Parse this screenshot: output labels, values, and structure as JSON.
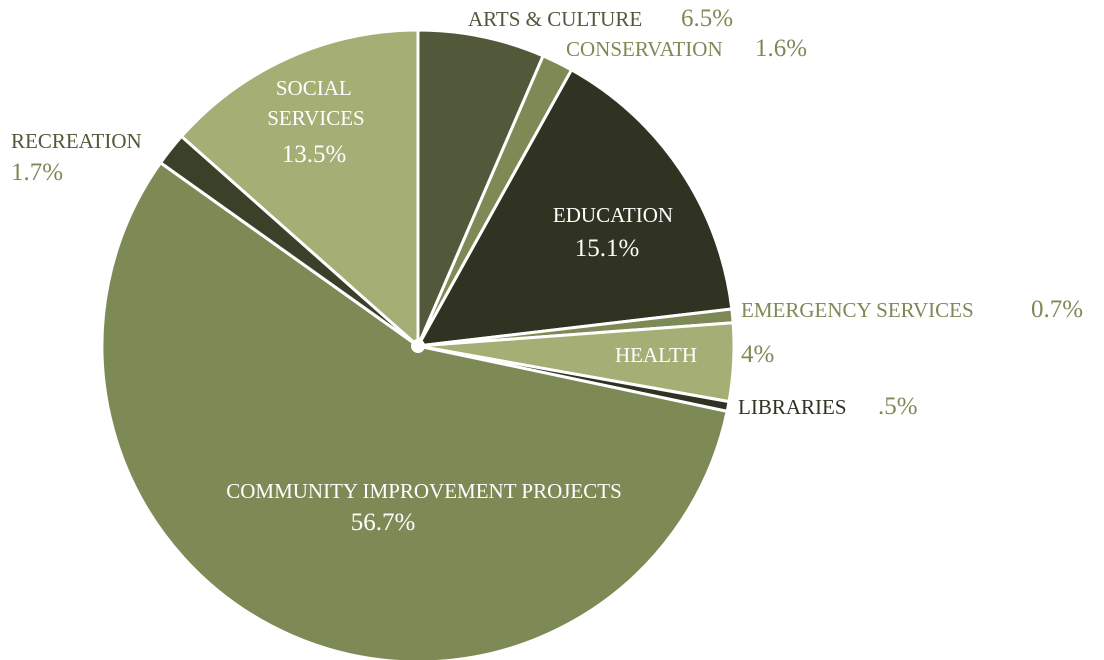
{
  "chart_data": {
    "type": "pie",
    "title": "",
    "slices": [
      {
        "name": "ARTS & CULTURE",
        "value": 6.5,
        "pct_label": "6.5%",
        "color": "#52583a"
      },
      {
        "name": "CONSERVATION",
        "value": 1.6,
        "pct_label": "1.6%",
        "color": "#7d8a55"
      },
      {
        "name": "EDUCATION",
        "value": 15.1,
        "pct_label": "15.1%",
        "color": "#303322"
      },
      {
        "name": "EMERGENCY SERVICES",
        "value": 0.7,
        "pct_label": "0.7%",
        "color": "#7d8a55"
      },
      {
        "name": "HEALTH",
        "value": 4,
        "pct_label": "4%",
        "color": "#a4ae75"
      },
      {
        "name": "LIBRARIES",
        "value": 0.5,
        "pct_label": ".5%",
        "color": "#303322"
      },
      {
        "name": "COMMUNITY IMPROVEMENT PROJECTS",
        "value": 56.7,
        "pct_label": "56.7%",
        "color": "#7d8a55"
      },
      {
        "name": "RECREATION",
        "value": 1.7,
        "pct_label": "1.7%",
        "color": "#3b4029"
      },
      {
        "name": "SOCIAL SERVICES",
        "value": 13.5,
        "pct_label": "13.5%",
        "color": "#a4ae75"
      }
    ]
  },
  "colors": {
    "dark_text": "#52583a",
    "mid_text": "#7d8a55",
    "light_text": "#ffffff"
  }
}
